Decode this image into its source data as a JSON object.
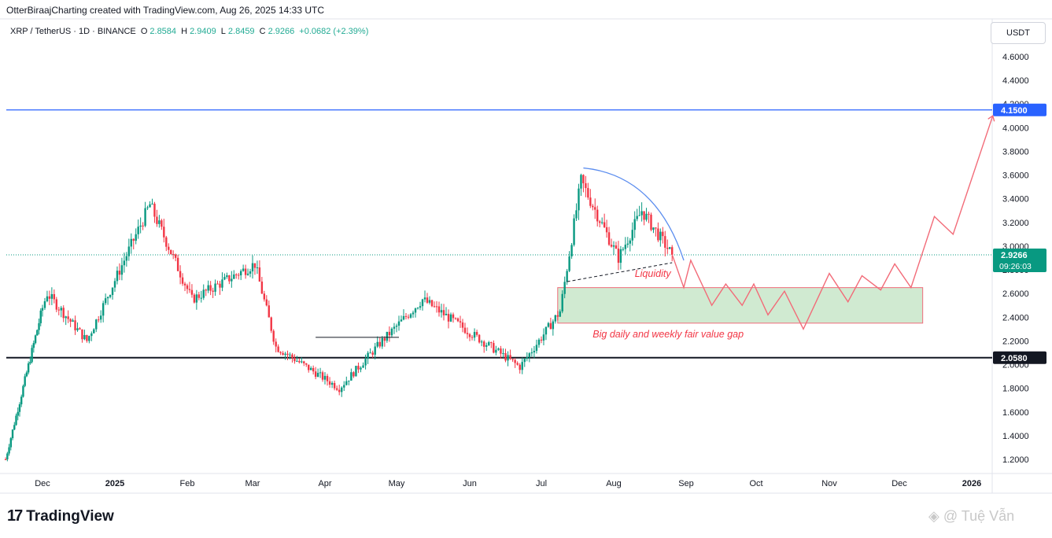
{
  "header": {
    "credit": "OtterBiraajCharting created with TradingView.com, Aug 26, 2025 14:33 UTC"
  },
  "symbol_bar": {
    "symbol": "XRP / TetherUS · 1D · BINANCE",
    "open_label": "O",
    "open_value": "2.8584",
    "high_label": "H",
    "high_value": "2.9409",
    "low_label": "L",
    "low_value": "2.8459",
    "close_label": "C",
    "close_value": "2.9266",
    "change": "+0.0682 (+2.39%)"
  },
  "currency_button": "USDT",
  "footer": {
    "logo_text": "TradingView",
    "logo_mark": "17",
    "watermark": "Tuệ Vẫn"
  },
  "colors": {
    "up": "#089981",
    "down": "#f23645",
    "resistance": "#2962ff",
    "support": "#131722",
    "fvg_fill": "#c8e6c9",
    "fvg_border": "#f06b7a",
    "projection": "#f26b78",
    "annotation_text": "#f23645"
  },
  "chart_data": {
    "type": "candlestick",
    "title": "",
    "x_axis": {
      "tick_labels": [
        "Dec",
        "2025",
        "Feb",
        "Mar",
        "Apr",
        "May",
        "Jun",
        "Jul",
        "Aug",
        "Sep",
        "Oct",
        "Nov",
        "Dec",
        "2026"
      ]
    },
    "y_axis": {
      "min": 1.1,
      "max": 4.8,
      "tick_labels": [
        "1.2000",
        "1.4000",
        "1.6000",
        "1.8000",
        "2.0000",
        "2.2000",
        "2.4000",
        "2.6000",
        "2.8000",
        "3.0000",
        "3.2000",
        "3.4000",
        "3.6000",
        "3.8000",
        "4.0000",
        "4.2000",
        "4.4000",
        "4.6000"
      ]
    },
    "last_price": {
      "value": 2.9266,
      "label": "2.9266",
      "countdown": "09:26:03"
    },
    "levels": [
      {
        "name": "resistance",
        "value": 4.15,
        "label": "4.1500"
      },
      {
        "name": "support",
        "value": 2.058,
        "label": "2.0580"
      }
    ],
    "fvg_zone": {
      "low": 2.35,
      "high": 2.65,
      "label": "Big daily and weekly fair value gap"
    },
    "liquidity_label": "Liquidity",
    "price_path_keypoints": [
      {
        "date": "2024-11-10",
        "price": 1.2
      },
      {
        "date": "2024-12-03",
        "price": 2.6
      },
      {
        "date": "2024-12-20",
        "price": 2.2
      },
      {
        "date": "2025-01-16",
        "price": 3.35
      },
      {
        "date": "2025-02-03",
        "price": 2.55
      },
      {
        "date": "2025-03-02",
        "price": 2.85
      },
      {
        "date": "2025-03-11",
        "price": 2.15
      },
      {
        "date": "2025-04-07",
        "price": 1.8
      },
      {
        "date": "2025-04-25",
        "price": 2.2
      },
      {
        "date": "2025-05-12",
        "price": 2.55
      },
      {
        "date": "2025-06-22",
        "price": 1.98
      },
      {
        "date": "2025-07-09",
        "price": 2.45
      },
      {
        "date": "2025-07-18",
        "price": 3.55
      },
      {
        "date": "2025-08-03",
        "price": 2.9
      },
      {
        "date": "2025-08-13",
        "price": 3.3
      },
      {
        "date": "2025-08-26",
        "price": 2.9266
      }
    ],
    "projection_path": [
      {
        "date": "2025-08-26",
        "price": 2.93
      },
      {
        "date": "2025-08-31",
        "price": 2.65
      },
      {
        "date": "2025-09-03",
        "price": 2.88
      },
      {
        "date": "2025-09-12",
        "price": 2.5
      },
      {
        "date": "2025-09-18",
        "price": 2.68
      },
      {
        "date": "2025-09-25",
        "price": 2.5
      },
      {
        "date": "2025-09-30",
        "price": 2.68
      },
      {
        "date": "2025-10-06",
        "price": 2.42
      },
      {
        "date": "2025-10-13",
        "price": 2.62
      },
      {
        "date": "2025-10-21",
        "price": 2.3
      },
      {
        "date": "2025-11-01",
        "price": 2.77
      },
      {
        "date": "2025-11-09",
        "price": 2.53
      },
      {
        "date": "2025-11-15",
        "price": 2.75
      },
      {
        "date": "2025-11-23",
        "price": 2.63
      },
      {
        "date": "2025-11-29",
        "price": 2.85
      },
      {
        "date": "2025-12-06",
        "price": 2.65
      },
      {
        "date": "2025-12-16",
        "price": 3.25
      },
      {
        "date": "2025-12-24",
        "price": 3.1
      },
      {
        "date": "2026-01-10",
        "price": 4.1
      }
    ]
  }
}
